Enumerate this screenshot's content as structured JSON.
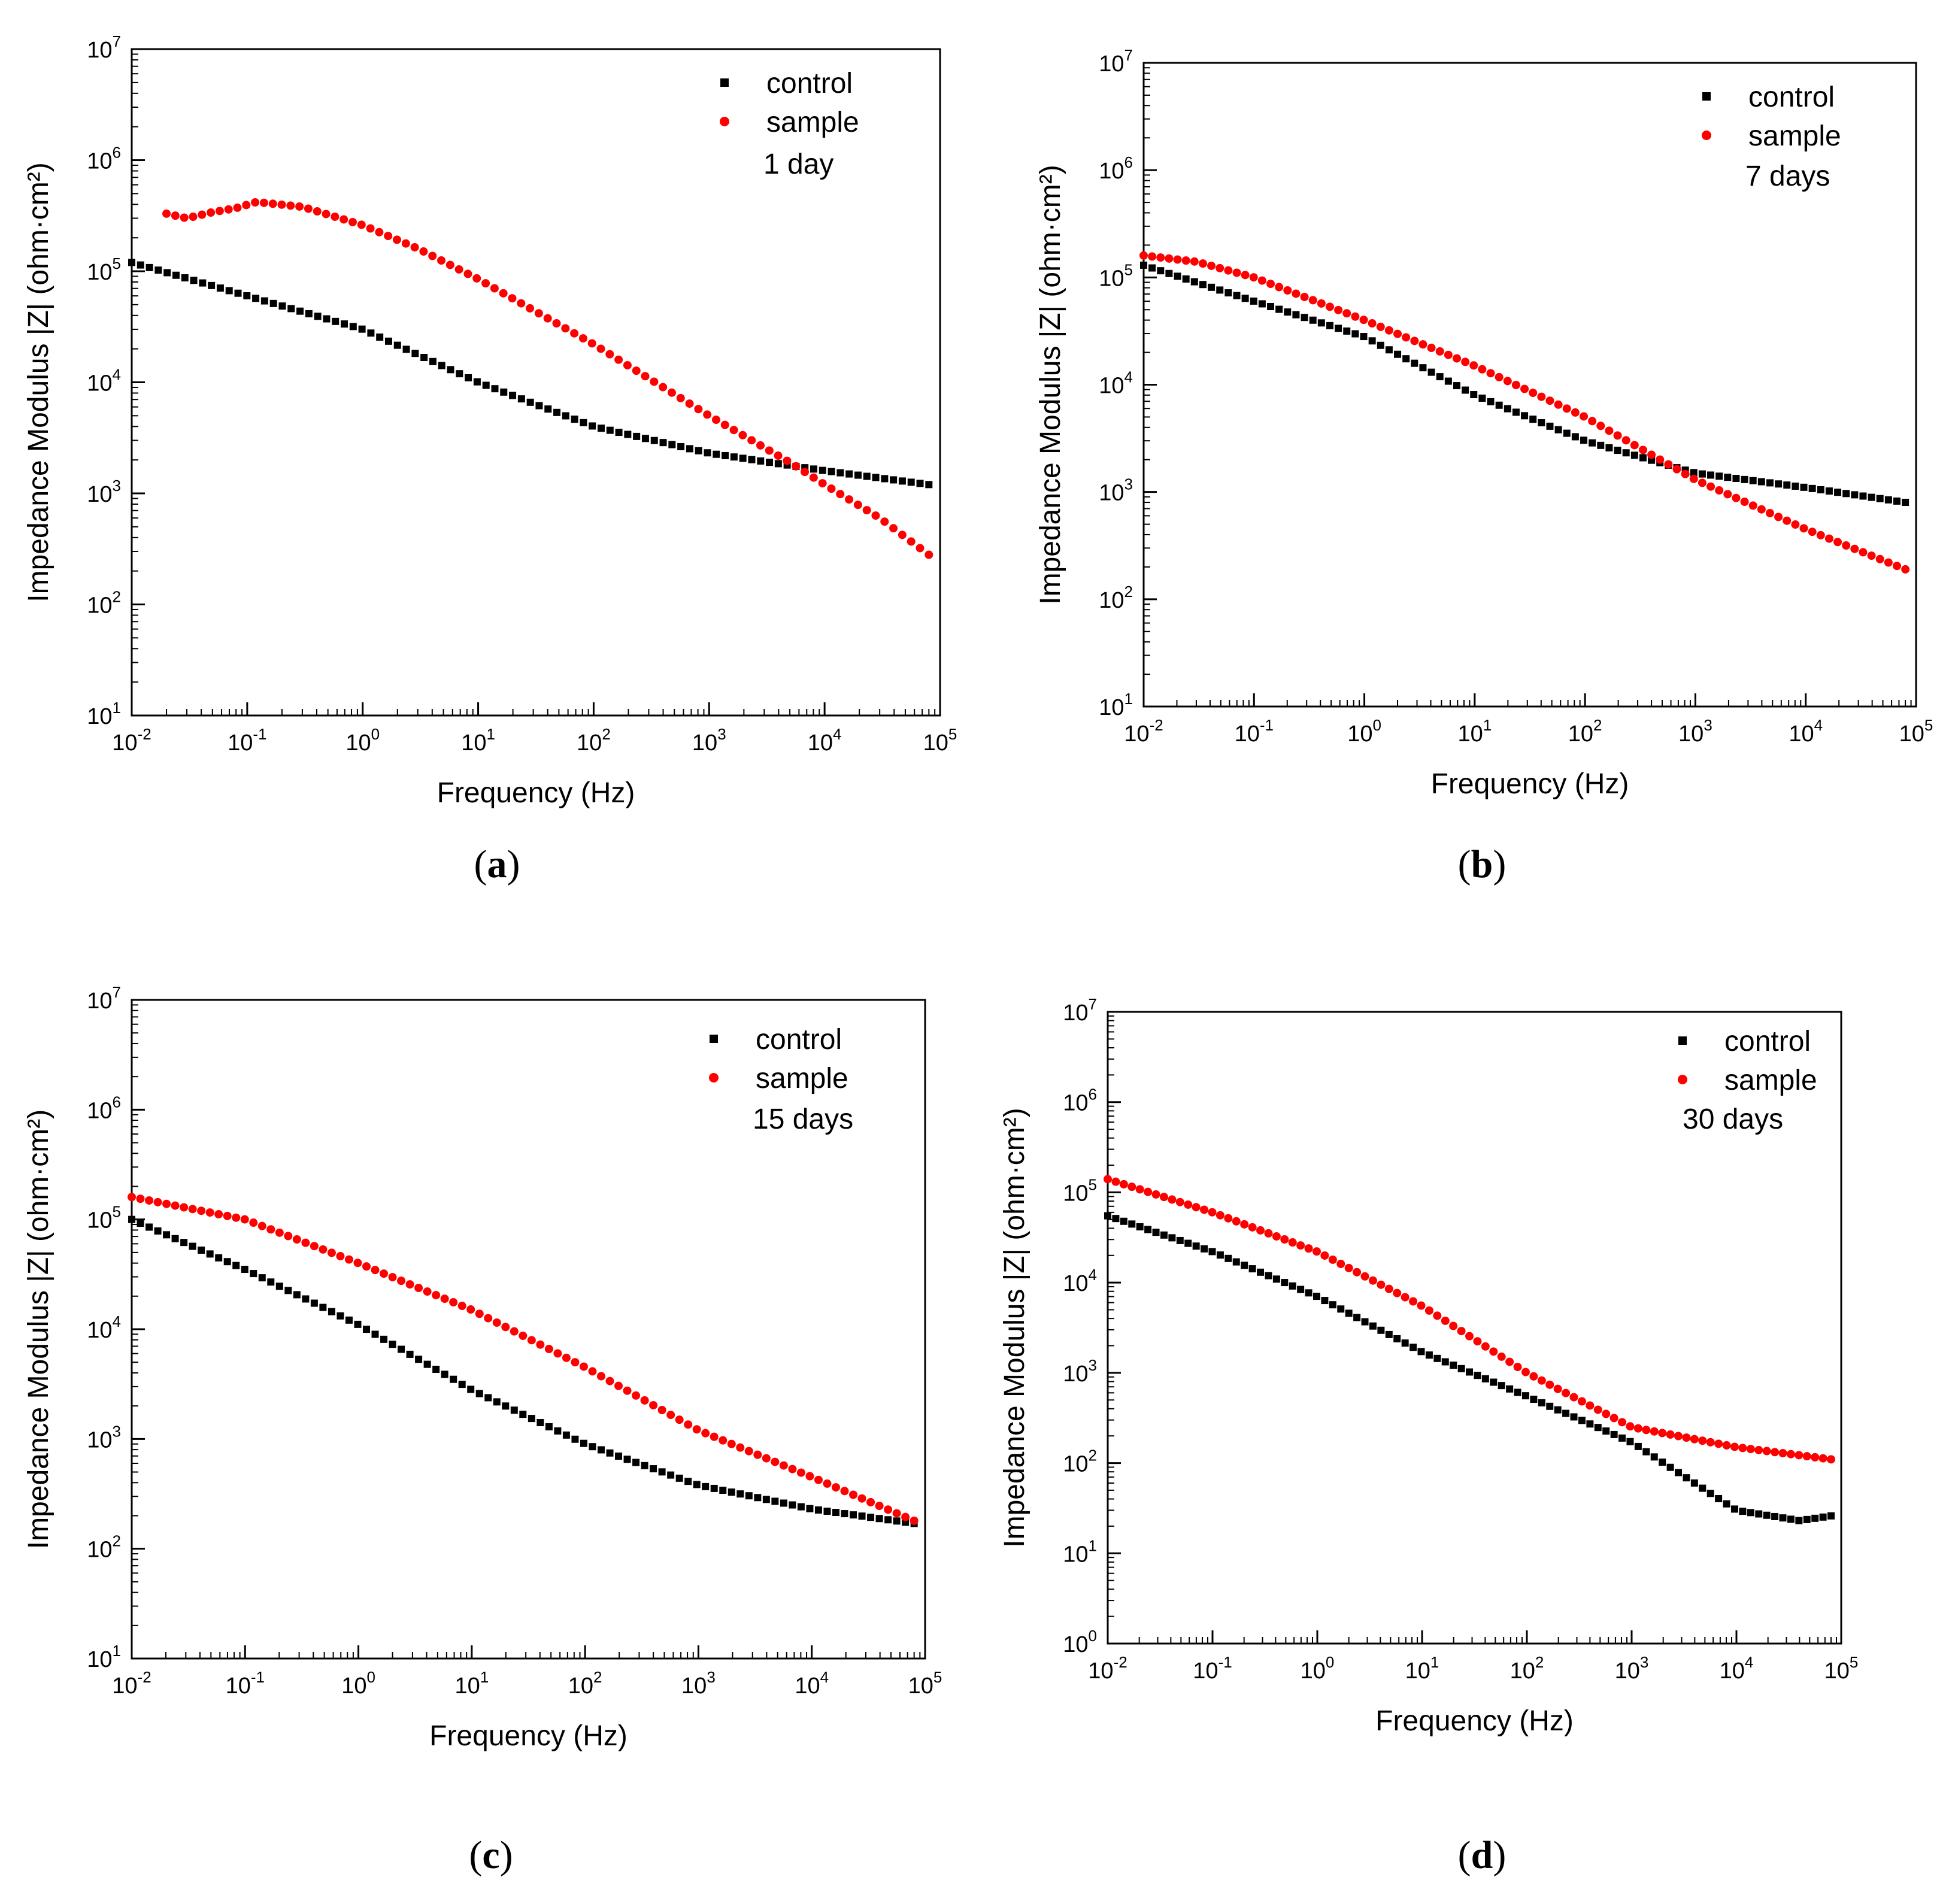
{
  "chart_data": [
    {
      "type": "scatter",
      "panel_label": "a",
      "annotation": "1 day",
      "xlabel": "Frequency (Hz)",
      "ylabel": "Impedance Modulus |Z| (ohm·cm²)",
      "x_scale": "log",
      "y_scale": "log",
      "xlim": [
        0.01,
        100000
      ],
      "ylim": [
        10,
        10000000
      ],
      "x_ticks": [
        {
          "base": "10",
          "exp": "-2"
        },
        {
          "base": "10",
          "exp": "-1"
        },
        {
          "base": "10",
          "exp": "0"
        },
        {
          "base": "10",
          "exp": "1"
        },
        {
          "base": "10",
          "exp": "2"
        },
        {
          "base": "10",
          "exp": "3"
        },
        {
          "base": "10",
          "exp": "4"
        },
        {
          "base": "10",
          "exp": "5"
        }
      ],
      "y_ticks": [
        {
          "base": "10",
          "exp": "1"
        },
        {
          "base": "10",
          "exp": "2"
        },
        {
          "base": "10",
          "exp": "3"
        },
        {
          "base": "10",
          "exp": "4"
        },
        {
          "base": "10",
          "exp": "5"
        },
        {
          "base": "10",
          "exp": "6"
        },
        {
          "base": "10",
          "exp": "7"
        }
      ],
      "legend": "top-right",
      "grid": false,
      "series": [
        {
          "name": "control",
          "marker": "square",
          "color": "#000000",
          "x": [
            0.01,
            0.1,
            1,
            10,
            100,
            1000,
            10000,
            80000
          ],
          "y": [
            120000,
            60000,
            30000,
            10000,
            4000,
            2300,
            1600,
            1200
          ]
        },
        {
          "name": "sample",
          "marker": "circle",
          "color": "#ff0000",
          "x": [
            0.02,
            0.03,
            0.05,
            0.08,
            0.12,
            0.3,
            1,
            3,
            10,
            100,
            1000,
            5000,
            10000,
            30000,
            80000
          ],
          "y": [
            330000,
            300000,
            340000,
            370000,
            420000,
            380000,
            260000,
            160000,
            85000,
            22000,
            5000,
            1900,
            1200,
            600,
            280
          ]
        }
      ]
    },
    {
      "type": "scatter",
      "panel_label": "b",
      "annotation": "7 days",
      "xlabel": "Frequency (Hz)",
      "ylabel": "Impedance Modulus |Z| (ohm·cm²)",
      "x_scale": "log",
      "y_scale": "log",
      "xlim": [
        0.01,
        100000
      ],
      "ylim": [
        10,
        10000000
      ],
      "x_ticks": [
        {
          "base": "10",
          "exp": "-2"
        },
        {
          "base": "10",
          "exp": "-1"
        },
        {
          "base": "10",
          "exp": "0"
        },
        {
          "base": "10",
          "exp": "1"
        },
        {
          "base": "10",
          "exp": "2"
        },
        {
          "base": "10",
          "exp": "3"
        },
        {
          "base": "10",
          "exp": "4"
        },
        {
          "base": "10",
          "exp": "5"
        }
      ],
      "y_ticks": [
        {
          "base": "10",
          "exp": "1"
        },
        {
          "base": "10",
          "exp": "2"
        },
        {
          "base": "10",
          "exp": "3"
        },
        {
          "base": "10",
          "exp": "4"
        },
        {
          "base": "10",
          "exp": "5"
        },
        {
          "base": "10",
          "exp": "6"
        },
        {
          "base": "10",
          "exp": "7"
        }
      ],
      "legend": "top-right",
      "grid": false,
      "series": [
        {
          "name": "control",
          "marker": "square",
          "color": "#000000",
          "x": [
            0.01,
            0.1,
            1,
            10,
            100,
            1000,
            10000,
            80000
          ],
          "y": [
            130000,
            60000,
            28000,
            8000,
            3000,
            1500,
            1100,
            800
          ]
        },
        {
          "name": "sample",
          "marker": "circle",
          "color": "#ff0000",
          "x": [
            0.01,
            0.03,
            0.1,
            1,
            10,
            100,
            1000,
            10000,
            80000
          ],
          "y": [
            160000,
            140000,
            100000,
            40000,
            15000,
            5000,
            1300,
            450,
            190
          ]
        }
      ]
    },
    {
      "type": "scatter",
      "panel_label": "c",
      "annotation": "15 days",
      "xlabel": "Frequency (Hz)",
      "ylabel": "Impedance Modulus |Z| (ohm·cm²)",
      "x_scale": "log",
      "y_scale": "log",
      "xlim": [
        0.01,
        100000
      ],
      "ylim": [
        10,
        10000000
      ],
      "x_ticks": [
        {
          "base": "10",
          "exp": "-2"
        },
        {
          "base": "10",
          "exp": "-1"
        },
        {
          "base": "10",
          "exp": "0"
        },
        {
          "base": "10",
          "exp": "1"
        },
        {
          "base": "10",
          "exp": "2"
        },
        {
          "base": "10",
          "exp": "3"
        },
        {
          "base": "10",
          "exp": "4"
        },
        {
          "base": "10",
          "exp": "5"
        }
      ],
      "y_ticks": [
        {
          "base": "10",
          "exp": "1"
        },
        {
          "base": "10",
          "exp": "2"
        },
        {
          "base": "10",
          "exp": "3"
        },
        {
          "base": "10",
          "exp": "4"
        },
        {
          "base": "10",
          "exp": "5"
        },
        {
          "base": "10",
          "exp": "6"
        },
        {
          "base": "10",
          "exp": "7"
        }
      ],
      "legend": "top-right",
      "grid": false,
      "series": [
        {
          "name": "control",
          "marker": "square",
          "color": "#000000",
          "x": [
            0.01,
            0.1,
            1,
            10,
            100,
            1000,
            10000,
            80000
          ],
          "y": [
            100000,
            35000,
            11000,
            2800,
            900,
            380,
            230,
            170
          ]
        },
        {
          "name": "sample",
          "marker": "circle",
          "color": "#ff0000",
          "x": [
            0.01,
            0.1,
            1,
            10,
            100,
            1000,
            10000,
            80000
          ],
          "y": [
            160000,
            100000,
            40000,
            15000,
            4500,
            1200,
            450,
            180
          ]
        }
      ]
    },
    {
      "type": "scatter",
      "panel_label": "d",
      "annotation": "30 days",
      "xlabel": "Frequency (Hz)",
      "ylabel": "Impedance Modulus |Z| (ohm·cm²)",
      "x_scale": "log",
      "y_scale": "log",
      "xlim": [
        0.01,
        100000
      ],
      "ylim": [
        1,
        10000000
      ],
      "x_ticks": [
        {
          "base": "10",
          "exp": "-2"
        },
        {
          "base": "10",
          "exp": "-1"
        },
        {
          "base": "10",
          "exp": "0"
        },
        {
          "base": "10",
          "exp": "1"
        },
        {
          "base": "10",
          "exp": "2"
        },
        {
          "base": "10",
          "exp": "3"
        },
        {
          "base": "10",
          "exp": "4"
        },
        {
          "base": "10",
          "exp": "5"
        }
      ],
      "y_ticks": [
        {
          "base": "10",
          "exp": "0"
        },
        {
          "base": "10",
          "exp": "1"
        },
        {
          "base": "10",
          "exp": "2"
        },
        {
          "base": "10",
          "exp": "3"
        },
        {
          "base": "10",
          "exp": "4"
        },
        {
          "base": "10",
          "exp": "5"
        },
        {
          "base": "10",
          "exp": "6"
        },
        {
          "base": "10",
          "exp": "7"
        }
      ],
      "legend": "top-right",
      "grid": false,
      "series": [
        {
          "name": "control",
          "marker": "square",
          "color": "#000000",
          "x": [
            0.01,
            0.1,
            1,
            10,
            100,
            1000,
            10000,
            40000,
            80000
          ],
          "y": [
            55000,
            22000,
            7000,
            1700,
            550,
            170,
            30,
            23,
            26
          ]
        },
        {
          "name": "sample",
          "marker": "circle",
          "color": "#ff0000",
          "x": [
            0.01,
            0.1,
            1,
            10,
            100,
            1000,
            10000,
            80000
          ],
          "y": [
            140000,
            60000,
            22000,
            5500,
            1000,
            250,
            150,
            110
          ]
        }
      ]
    }
  ]
}
